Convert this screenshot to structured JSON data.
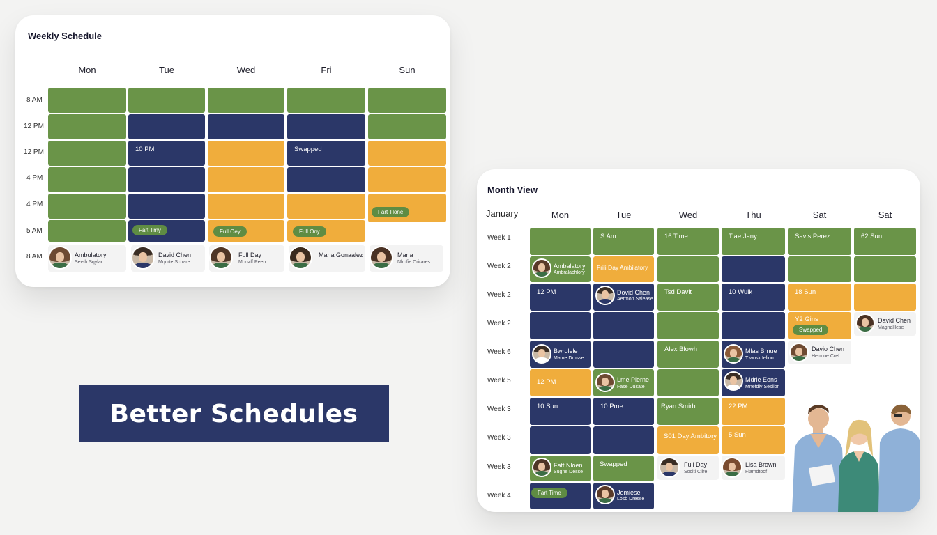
{
  "weekly": {
    "title": "Weekly Schedule",
    "days": [
      "Mon",
      "Tue",
      "Wed",
      "Fri",
      "Sun"
    ],
    "times": [
      "8 AM",
      "12 PM",
      "12 PM",
      "4 PM",
      "4 PM",
      "5 AM",
      "8 AM"
    ],
    "cell_texts": {
      "tue_r3": "10 PM",
      "fri_r3": "Swapped"
    },
    "pills": {
      "tue": "Fart Tmy",
      "wed": "Full Oey",
      "fri": "Full Ony",
      "sun": "Fart Tlone"
    },
    "people": [
      {
        "name": "Ambulatory",
        "sub": "Sersh Sqylar"
      },
      {
        "name": "David Chen",
        "sub": "Mqcrte Schare"
      },
      {
        "name": "Full Day",
        "sub": "Mcrsdf Peerr"
      },
      {
        "name": "Maria Gonaalez",
        "sub": ""
      },
      {
        "name": "Maria",
        "sub": "Nlrofie Crirares"
      }
    ]
  },
  "monthly": {
    "title": "Month View",
    "month": "January",
    "days": [
      "Mon",
      "Tue",
      "Wed",
      "Thu",
      "Sat",
      "Sat"
    ],
    "weeks": [
      "Week 1",
      "Week 2",
      "Week 2",
      "Week 2",
      "Week 6",
      "Week 5",
      "Week 3",
      "Week 3",
      "Week 3",
      "Week 4"
    ],
    "texts": {
      "r0_tue": "S Am",
      "r0_wed": "16 Time",
      "r0_thu": "Tiae Jany",
      "r0_sat1": "Savis Perez",
      "r0_sat2": "62 Sun",
      "r1_tue": "Frili Day Ambilatory",
      "r2_mon": "12 PM",
      "r2_wed": "Tsd Davit",
      "r2_thu": "10 Wuik",
      "r2_sat1": "18 Sun",
      "r3_sat1": "Y2 Gins",
      "r4_wed": "Alex Blowh",
      "r5_mon": "12 PM",
      "r6_mon": "10 Sun",
      "r6_tue": "10 Pme",
      "r6_wed": "Ryan Smirh",
      "r6_thu": "22 PM",
      "r7_wed": "S01 Day Ambitory",
      "r7_thu": "5 Sun",
      "r8_tue": "Swapped"
    },
    "pills": {
      "r3_sat1": "Swapped",
      "r9_mon": "Fart Time"
    },
    "people": {
      "r1_mon": {
        "name": "Ambalatory",
        "sub": "Ambralachlory"
      },
      "r2_tue": {
        "name": "Dovid Chen",
        "sub": "Aermon Salease"
      },
      "r3_sat2": {
        "name": "David Chen",
        "sub": "Magnalllese"
      },
      "r4_mon": {
        "name": "Bwrolele",
        "sub": "Matne Drosse"
      },
      "r4_thu": {
        "name": "Mlas Brnue",
        "sub": "T wosk Ielion"
      },
      "r4_sat1": {
        "name": "Davio Chen",
        "sub": "Hermoe Cref"
      },
      "r5_tue": {
        "name": "Lme Plerne",
        "sub": "Fase Dusate"
      },
      "r5_thu": {
        "name": "Mdrie Eons",
        "sub": "Mnefdly Sesilon"
      },
      "r8_mon": {
        "name": "Fatt Nloen",
        "sub": "Sugne Desse"
      },
      "r8_wed": {
        "name": "Full Day",
        "sub": "Socitl Cilre"
      },
      "r8_thu": {
        "name": "Lisa Brown",
        "sub": "Flamdtoof"
      },
      "r9_tue": {
        "name": "Jomiese",
        "sub": "Losb Dresse"
      }
    }
  },
  "banner": {
    "text": "Better Schedules"
  },
  "colors": {
    "green": "#6a9448",
    "navy": "#2b3768",
    "orange": "#f0ad3c",
    "pill": "#5f8c43"
  },
  "icons": [
    "avatar",
    "staff-photo"
  ]
}
